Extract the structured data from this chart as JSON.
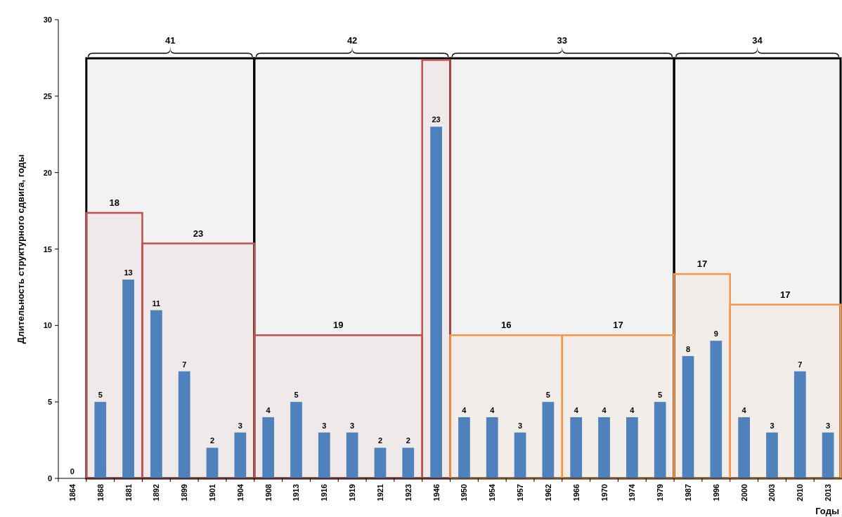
{
  "chart_data": {
    "type": "bar",
    "ylabel": "Длительность структурного сдвига, годы",
    "xlabel": "Годы",
    "categories": [
      "1864",
      "1868",
      "1881",
      "1892",
      "1899",
      "1901",
      "1904",
      "1908",
      "1913",
      "1916",
      "1919",
      "1921",
      "1923",
      "1946",
      "1950",
      "1954",
      "1957",
      "1962",
      "1966",
      "1970",
      "1974",
      "1979",
      "1987",
      "1996",
      "2000",
      "2003",
      "2010",
      "2013"
    ],
    "values": [
      0,
      5,
      13,
      11,
      7,
      2,
      3,
      4,
      5,
      3,
      3,
      2,
      2,
      23,
      4,
      4,
      3,
      5,
      4,
      4,
      4,
      5,
      8,
      9,
      4,
      3,
      7,
      3
    ],
    "color": "#4f81bd",
    "data_labels": true,
    "ylim": [
      0,
      30
    ],
    "yticks": [
      0,
      5,
      10,
      15,
      20,
      25,
      30
    ],
    "grid": false,
    "bands": [
      {
        "axis": "x",
        "from": "1868",
        "to": "1904",
        "label": "41",
        "color": "#000000"
      },
      {
        "axis": "x",
        "from": "1908",
        "to": "1946",
        "label": "42",
        "color": "#000000"
      },
      {
        "axis": "x",
        "from": "1950",
        "to": "1979",
        "label": "33",
        "color": "#000000"
      },
      {
        "axis": "x",
        "from": "1987",
        "to": "2013",
        "label": "34",
        "color": "#000000"
      },
      {
        "axis": "x",
        "from": "1868",
        "to": "1881",
        "label": "18",
        "color": "#c0504d"
      },
      {
        "axis": "x",
        "from": "1892",
        "to": "1904",
        "label": "23",
        "color": "#c0504d"
      },
      {
        "axis": "x",
        "from": "1908",
        "to": "1923",
        "label": "19",
        "color": "#c0504d"
      },
      {
        "axis": "x",
        "from": "1946",
        "to": "1946",
        "color": "#c0504d"
      },
      {
        "axis": "x",
        "from": "1950",
        "to": "1962",
        "label": "16",
        "color": "#f79646"
      },
      {
        "axis": "x",
        "from": "1966",
        "to": "1979",
        "label": "17",
        "color": "#f79646"
      },
      {
        "axis": "x",
        "from": "1987",
        "to": "1996",
        "label": "17",
        "color": "#f79646"
      },
      {
        "axis": "x",
        "from": "2000",
        "to": "2013",
        "label": "17",
        "color": "#f79646"
      }
    ]
  }
}
